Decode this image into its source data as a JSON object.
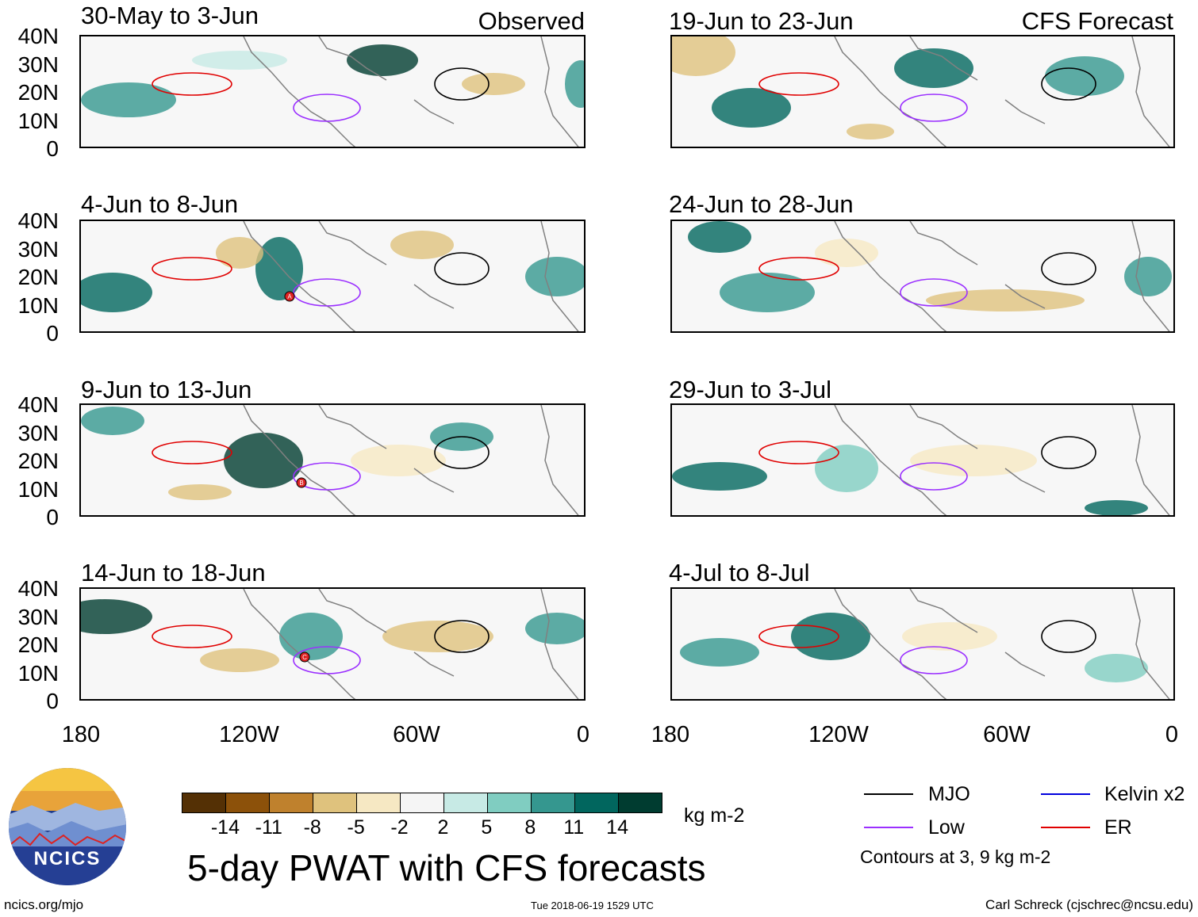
{
  "left_column": {
    "tag": "Observed",
    "panels": [
      {
        "title": "30-May to 3-Jun"
      },
      {
        "title": "4-Jun to 8-Jun"
      },
      {
        "title": "9-Jun to 13-Jun"
      },
      {
        "title": "14-Jun to 18-Jun"
      }
    ]
  },
  "right_column": {
    "tag": "CFS Forecast",
    "panels": [
      {
        "title": "19-Jun to 23-Jun"
      },
      {
        "title": "24-Jun to 28-Jun"
      },
      {
        "title": "29-Jun to 3-Jul"
      },
      {
        "title": "4-Jul to 8-Jul"
      }
    ]
  },
  "y_axis_labels": [
    "40N",
    "30N",
    "20N",
    "10N",
    "0"
  ],
  "x_axis_labels": [
    "180",
    "120W",
    "60W",
    "0"
  ],
  "markers": [
    "A",
    "B",
    "C"
  ],
  "colorbar": {
    "colors": [
      "#543005",
      "#8c510a",
      "#bf812d",
      "#dfc27d",
      "#f6e8c3",
      "#f5f5f5",
      "#c7eae5",
      "#80cdc1",
      "#35978f",
      "#01665e",
      "#003c30"
    ],
    "labels": [
      "-14",
      "-11",
      "-8",
      "-5",
      "-2",
      "2",
      "5",
      "8",
      "11",
      "14"
    ],
    "units": "kg m-2"
  },
  "title": "5-day PWAT with CFS forecasts",
  "legend": {
    "items": [
      {
        "label": "MJO",
        "color": "#000000"
      },
      {
        "label": "Kelvin x2",
        "color": "#0000dd"
      },
      {
        "label": "Low",
        "color": "#9b30ff"
      },
      {
        "label": "ER",
        "color": "#e00000"
      }
    ],
    "note": "Contours at 3, 9 kg m-2"
  },
  "logo": {
    "text": "NCICS"
  },
  "footer": {
    "left": "ncics.org/mjo",
    "middle": "Tue 2018-06-19 1529 UTC",
    "right": "Carl Schreck (cjschrec@ncsu.edu)"
  }
}
